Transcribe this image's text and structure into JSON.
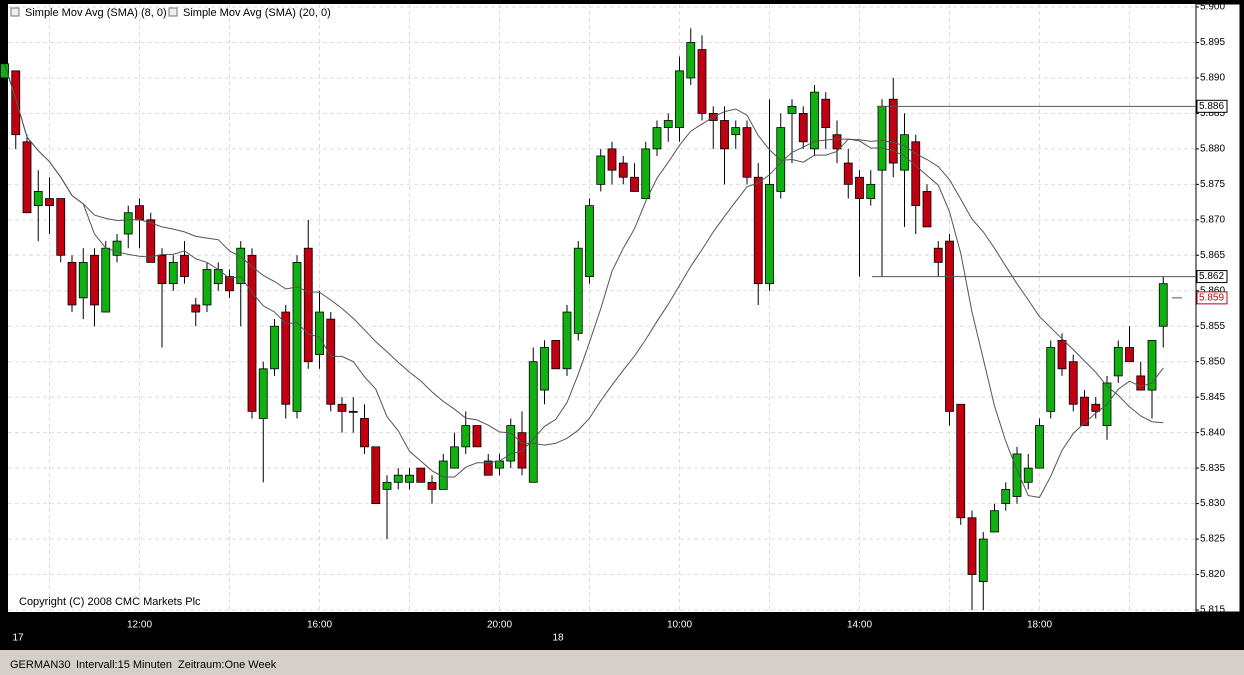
{
  "chart_data": {
    "type": "candlestick",
    "indicators": [
      {
        "name": "Simple Mov Avg (SMA) (8, 0)",
        "period": 8,
        "color": "#555555"
      },
      {
        "name": "Simple Mov Avg (SMA) (20, 0)",
        "period": 20,
        "color": "#555555"
      }
    ],
    "annotation": "Copyright (C) 2008 CMC Markets Plc",
    "footer": [
      "GERMAN30",
      "Intervall:15 Minuten",
      "Zeitraum:One Week"
    ],
    "up_color": "#10b010",
    "down_color": "#c00010",
    "grid": true,
    "ylim": [
      5.815,
      5.9
    ],
    "yticks": [
      5.815,
      {
        "value": 5.82,
        "label": "5.820"
      },
      5.825,
      {
        "value": 5.83,
        "label": "5.830"
      },
      5.835,
      {
        "value": 5.84,
        "label": "5.840"
      },
      5.845,
      {
        "value": 5.85,
        "label": "5.850"
      },
      5.855,
      {
        "value": 5.86,
        "label": "5.860"
      },
      5.865,
      {
        "value": 5.87,
        "label": "5.870"
      },
      5.875,
      {
        "value": 5.88,
        "label": "5.880"
      },
      5.885,
      {
        "value": 5.89,
        "label": "5.890"
      },
      5.895,
      {
        "value": 5.9,
        "label": "5.900"
      }
    ],
    "price_markers": [
      {
        "value": 5.886,
        "color": "#000000"
      },
      {
        "value": 5.862,
        "color": "#000000"
      },
      {
        "value": 5.859,
        "color": "#c00010"
      }
    ],
    "categories": [
      "17",
      null,
      null,
      null,
      null,
      null,
      null,
      null,
      null,
      null,
      null,
      null,
      "12:00",
      null,
      null,
      null,
      null,
      null,
      null,
      null,
      null,
      null,
      null,
      null,
      null,
      null,
      null,
      null,
      "16:00",
      null,
      null,
      null,
      null,
      null,
      null,
      null,
      null,
      null,
      null,
      null,
      null,
      null,
      null,
      null,
      "20:00",
      null,
      null,
      null,
      "18",
      null,
      null,
      null,
      null,
      null,
      null,
      null,
      null,
      null,
      null,
      null,
      "10:00",
      null,
      null,
      null,
      null,
      null,
      null,
      null,
      null,
      null,
      null,
      null,
      null,
      null,
      null,
      null,
      "14:00",
      null,
      null,
      null,
      null,
      null,
      null,
      null,
      null,
      null,
      null,
      null,
      null,
      null,
      null,
      null,
      "18:00",
      null,
      null,
      null,
      null,
      null,
      null,
      null,
      null,
      null,
      null,
      null
    ],
    "open": [
      5.89,
      5.891,
      5.881,
      5.872,
      5.873,
      5.873,
      5.864,
      5.859,
      5.865,
      5.857,
      5.865,
      5.868,
      5.872,
      5.87,
      5.865,
      5.861,
      5.865,
      5.858,
      5.858,
      5.861,
      5.862,
      5.861,
      5.865,
      5.842,
      5.849,
      5.857,
      5.843,
      5.866,
      5.851,
      5.856,
      5.844,
      5.843,
      5.842,
      5.838,
      5.832,
      5.833,
      5.833,
      5.835,
      5.833,
      5.832,
      5.835,
      5.838,
      5.841,
      5.836,
      5.835,
      5.836,
      5.84,
      5.833,
      5.846,
      5.853,
      5.849,
      5.854,
      5.862,
      5.875,
      5.88,
      5.878,
      5.876,
      5.873,
      5.88,
      5.883,
      5.883,
      5.89,
      5.894,
      5.885,
      5.884,
      5.882,
      5.883,
      5.876,
      5.861,
      5.874,
      5.885,
      5.885,
      5.88,
      5.887,
      5.882,
      5.878,
      5.876,
      5.873,
      5.877,
      5.887,
      5.877,
      5.881,
      5.874,
      5.866,
      5.867,
      5.844,
      5.828,
      5.819,
      5.826,
      5.83,
      5.831,
      5.833,
      5.835,
      5.843,
      5.853,
      5.85,
      5.845,
      5.844,
      5.841,
      5.848,
      5.852,
      5.848,
      5.846,
      5.855
    ],
    "high": [
      5.894,
      5.891,
      5.882,
      5.877,
      5.876,
      5.873,
      5.865,
      5.866,
      5.866,
      5.867,
      5.868,
      5.872,
      5.873,
      5.871,
      5.866,
      5.865,
      5.867,
      5.859,
      5.864,
      5.864,
      5.863,
      5.867,
      5.866,
      5.85,
      5.856,
      5.858,
      5.865,
      5.87,
      5.86,
      5.857,
      5.845,
      5.845,
      5.844,
      5.838,
      5.834,
      5.835,
      5.835,
      5.835,
      5.834,
      5.837,
      5.84,
      5.843,
      5.841,
      5.837,
      5.837,
      5.842,
      5.843,
      5.852,
      5.853,
      5.853,
      5.858,
      5.867,
      5.873,
      5.88,
      5.881,
      5.879,
      5.878,
      5.881,
      5.884,
      5.885,
      5.893,
      5.897,
      5.896,
      5.886,
      5.886,
      5.884,
      5.884,
      5.878,
      5.887,
      5.885,
      5.887,
      5.886,
      5.889,
      5.888,
      5.884,
      5.88,
      5.877,
      5.877,
      5.887,
      5.89,
      5.885,
      5.882,
      5.875,
      5.867,
      5.868,
      5.844,
      5.829,
      5.826,
      5.83,
      5.833,
      5.838,
      5.837,
      5.842,
      5.853,
      5.854,
      5.851,
      5.846,
      5.845,
      5.848,
      5.853,
      5.855,
      5.85,
      5.853,
      5.862
    ],
    "low": [
      5.886,
      5.88,
      5.871,
      5.867,
      5.868,
      5.864,
      5.857,
      5.856,
      5.855,
      5.857,
      5.864,
      5.866,
      5.866,
      5.864,
      5.852,
      5.86,
      5.861,
      5.855,
      5.857,
      5.86,
      5.859,
      5.855,
      5.842,
      5.833,
      5.848,
      5.842,
      5.842,
      5.849,
      5.849,
      5.843,
      5.84,
      5.84,
      5.837,
      5.83,
      5.825,
      5.832,
      5.832,
      5.833,
      5.83,
      5.832,
      5.835,
      5.837,
      5.838,
      5.834,
      5.834,
      5.835,
      5.834,
      5.833,
      5.844,
      5.849,
      5.848,
      5.853,
      5.861,
      5.874,
      5.875,
      5.875,
      5.874,
      5.873,
      5.879,
      5.881,
      5.881,
      5.889,
      5.884,
      5.88,
      5.875,
      5.88,
      5.875,
      5.858,
      5.86,
      5.873,
      5.878,
      5.88,
      5.879,
      5.88,
      5.878,
      5.873,
      5.862,
      5.872,
      5.862,
      5.876,
      5.869,
      5.868,
      5.869,
      5.862,
      5.841,
      5.827,
      5.815,
      5.815,
      5.826,
      5.829,
      5.83,
      5.832,
      5.835,
      5.842,
      5.848,
      5.843,
      5.841,
      5.842,
      5.839,
      5.847,
      5.85,
      5.846,
      5.842,
      5.852
    ],
    "close": [
      5.892,
      5.882,
      5.871,
      5.874,
      5.872,
      5.865,
      5.858,
      5.864,
      5.858,
      5.866,
      5.867,
      5.871,
      5.87,
      5.864,
      5.861,
      5.864,
      5.862,
      5.857,
      5.863,
      5.863,
      5.86,
      5.866,
      5.843,
      5.849,
      5.855,
      5.844,
      5.864,
      5.85,
      5.857,
      5.844,
      5.843,
      5.843,
      5.838,
      5.83,
      5.833,
      5.834,
      5.834,
      5.833,
      5.832,
      5.836,
      5.838,
      5.841,
      5.838,
      5.834,
      5.836,
      5.841,
      5.835,
      5.85,
      5.852,
      5.849,
      5.857,
      5.866,
      5.872,
      5.879,
      5.877,
      5.876,
      5.874,
      5.88,
      5.883,
      5.884,
      5.891,
      5.895,
      5.885,
      5.884,
      5.88,
      5.883,
      5.876,
      5.861,
      5.875,
      5.883,
      5.886,
      5.881,
      5.888,
      5.883,
      5.88,
      5.875,
      5.873,
      5.875,
      5.886,
      5.878,
      5.882,
      5.872,
      5.869,
      5.864,
      5.843,
      5.828,
      5.82,
      5.825,
      5.829,
      5.832,
      5.837,
      5.835,
      5.841,
      5.852,
      5.849,
      5.844,
      5.841,
      5.843,
      5.847,
      5.852,
      5.85,
      5.846,
      5.853,
      5.861
    ]
  }
}
